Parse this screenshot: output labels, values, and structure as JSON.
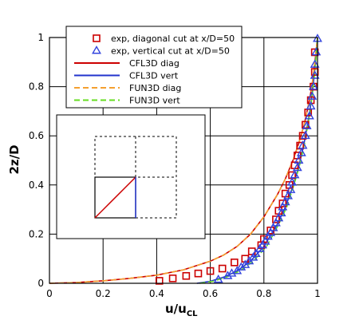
{
  "chart_data": {
    "type": "scatter",
    "xlabel": "u/u",
    "xlabel_sub": "CL",
    "ylabel": "2z/D",
    "xlim": [
      0,
      1
    ],
    "ylim": [
      0,
      1
    ],
    "xticks": [
      "0",
      "0.2",
      "0.4",
      "0.6",
      "0.8",
      "1"
    ],
    "yticks": [
      "0",
      "0.2",
      "0.4",
      "0.6",
      "0.8",
      "1"
    ],
    "grid": true,
    "legend_position": "top-center",
    "legend": [
      {
        "label": "exp, diagonal cut at x/D=50",
        "kind": "marker",
        "marker": "square",
        "color": "#cc0000"
      },
      {
        "label": "exp, vertical cut at x/D=50",
        "kind": "marker",
        "marker": "triangle",
        "color": "#3344dd"
      },
      {
        "label": "CFL3D diag",
        "kind": "line",
        "dash": "solid",
        "color": "#cc0000"
      },
      {
        "label": "CFL3D vert",
        "kind": "line",
        "dash": "solid",
        "color": "#2233cc"
      },
      {
        "label": "FUN3D diag",
        "kind": "line",
        "dash": "dashed",
        "color": "#f4a030"
      },
      {
        "label": "FUN3D vert",
        "kind": "line",
        "dash": "dashed",
        "color": "#66dd22"
      }
    ],
    "series": [
      {
        "name": "exp, diagonal cut at x/D=50",
        "marker": "square",
        "color": "#cc0000",
        "x": [
          0.41,
          0.46,
          0.51,
          0.555,
          0.6,
          0.645,
          0.69,
          0.73,
          0.755,
          0.79,
          0.8,
          0.825,
          0.845,
          0.855,
          0.87,
          0.88,
          0.895,
          0.905,
          0.915,
          0.925,
          0.935,
          0.945,
          0.955,
          0.965,
          0.975,
          0.985,
          0.99,
          0.99
        ],
        "y": [
          0.01,
          0.02,
          0.03,
          0.04,
          0.05,
          0.06,
          0.085,
          0.1,
          0.13,
          0.155,
          0.18,
          0.215,
          0.26,
          0.295,
          0.325,
          0.365,
          0.4,
          0.44,
          0.48,
          0.52,
          0.56,
          0.6,
          0.645,
          0.695,
          0.745,
          0.8,
          0.86,
          0.94
        ]
      },
      {
        "name": "exp, vertical cut at x/D=50",
        "marker": "triangle",
        "color": "#3344dd",
        "x": [
          0.63,
          0.665,
          0.68,
          0.7,
          0.715,
          0.73,
          0.745,
          0.76,
          0.77,
          0.785,
          0.795,
          0.805,
          0.815,
          0.825,
          0.835,
          0.845,
          0.855,
          0.865,
          0.87,
          0.88,
          0.89,
          0.9,
          0.905,
          0.915,
          0.925,
          0.93,
          0.94,
          0.945,
          0.955,
          0.96,
          0.97,
          0.975,
          0.98,
          0.985,
          0.99,
          0.99,
          0.995,
          1.0
        ],
        "y": [
          0.015,
          0.03,
          0.04,
          0.05,
          0.065,
          0.075,
          0.09,
          0.105,
          0.12,
          0.14,
          0.155,
          0.17,
          0.19,
          0.205,
          0.225,
          0.245,
          0.265,
          0.285,
          0.31,
          0.33,
          0.355,
          0.38,
          0.41,
          0.44,
          0.47,
          0.5,
          0.53,
          0.56,
          0.6,
          0.64,
          0.68,
          0.72,
          0.76,
          0.8,
          0.845,
          0.89,
          0.94,
          0.995
        ]
      },
      {
        "name": "CFL3D diag",
        "line": "solid",
        "color": "#cc0000",
        "x": [
          0.0,
          0.1,
          0.2,
          0.3,
          0.4,
          0.5,
          0.6,
          0.65,
          0.7,
          0.75,
          0.8,
          0.85,
          0.88,
          0.91,
          0.93,
          0.95,
          0.97,
          0.98,
          0.99,
          1.0
        ],
        "y": [
          0.0,
          0.003,
          0.01,
          0.02,
          0.033,
          0.055,
          0.09,
          0.115,
          0.15,
          0.2,
          0.27,
          0.36,
          0.425,
          0.505,
          0.57,
          0.645,
          0.745,
          0.81,
          0.895,
          1.0
        ]
      },
      {
        "name": "CFL3D vert",
        "line": "solid",
        "color": "#2233cc",
        "x": [
          0.55,
          0.6,
          0.65,
          0.7,
          0.75,
          0.8,
          0.85,
          0.88,
          0.91,
          0.93,
          0.95,
          0.97,
          0.98,
          0.99,
          1.0
        ],
        "y": [
          0.0,
          0.008,
          0.025,
          0.05,
          0.09,
          0.15,
          0.24,
          0.31,
          0.4,
          0.475,
          0.57,
          0.69,
          0.77,
          0.87,
          1.0
        ]
      },
      {
        "name": "FUN3D diag",
        "line": "dashed",
        "color": "#f4a030",
        "x": [
          0.0,
          0.1,
          0.2,
          0.3,
          0.4,
          0.5,
          0.6,
          0.65,
          0.7,
          0.75,
          0.8,
          0.85,
          0.88,
          0.91,
          0.93,
          0.95,
          0.97,
          0.98,
          0.99,
          1.0
        ],
        "y": [
          0.0,
          0.003,
          0.01,
          0.02,
          0.033,
          0.055,
          0.09,
          0.115,
          0.15,
          0.2,
          0.27,
          0.36,
          0.425,
          0.505,
          0.57,
          0.645,
          0.745,
          0.81,
          0.895,
          1.0
        ]
      },
      {
        "name": "FUN3D vert",
        "line": "dashed",
        "color": "#66dd22",
        "x": [
          0.56,
          0.61,
          0.66,
          0.71,
          0.76,
          0.81,
          0.855,
          0.885,
          0.912,
          0.932,
          0.952,
          0.971,
          0.981,
          0.991,
          1.0
        ],
        "y": [
          0.0,
          0.008,
          0.025,
          0.05,
          0.09,
          0.15,
          0.24,
          0.31,
          0.4,
          0.475,
          0.57,
          0.69,
          0.77,
          0.87,
          1.0
        ]
      }
    ],
    "inset": {
      "description_shown": "cross-section schematic",
      "diag_color": "#cc0000",
      "vert_color": "#2233cc"
    }
  }
}
